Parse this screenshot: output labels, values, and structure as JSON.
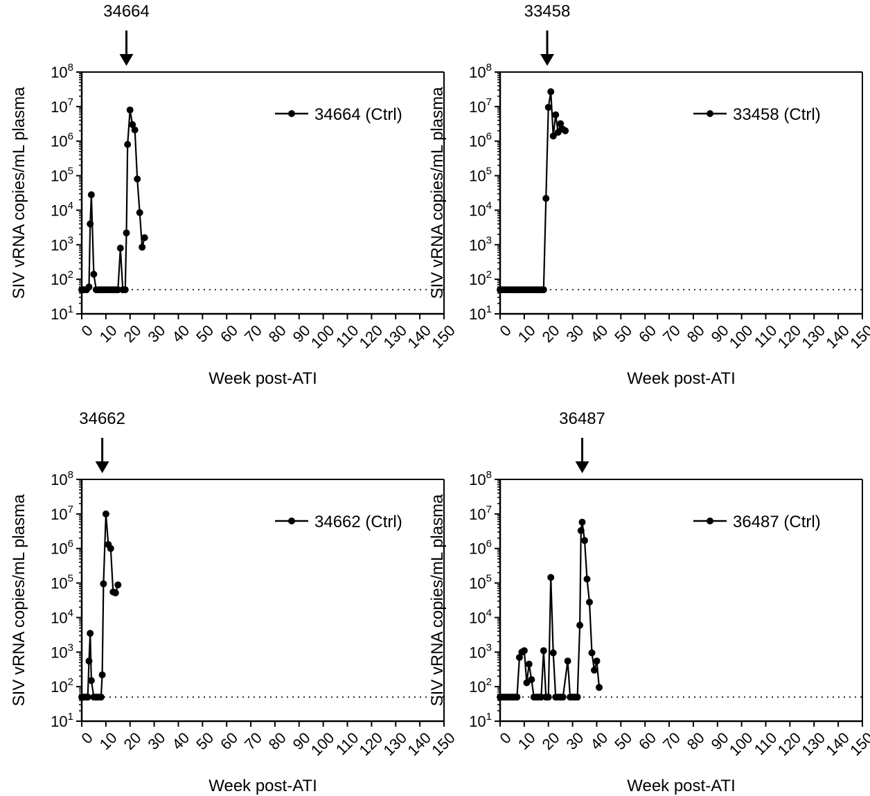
{
  "figure": {
    "ylabel": "SIV vRNA copies/mL plasma",
    "xlabel": "Week post-ATI"
  },
  "chart_data": [
    {
      "type": "line",
      "title": "34664",
      "arrow_week": 18.5,
      "xlabel": "Week post-ATI",
      "ylabel": "SIV vRNA copies/mL plasma",
      "xlim": [
        0,
        150
      ],
      "ylim": [
        10,
        100000000
      ],
      "yscale": "log",
      "xticks": [
        0,
        10,
        20,
        30,
        40,
        50,
        60,
        70,
        80,
        90,
        100,
        110,
        120,
        130,
        140,
        150
      ],
      "yticks": [
        {
          "base": "10",
          "exp": "1"
        },
        {
          "base": "10",
          "exp": "2"
        },
        {
          "base": "10",
          "exp": "3"
        },
        {
          "base": "10",
          "exp": "4"
        },
        {
          "base": "10",
          "exp": "5"
        },
        {
          "base": "10",
          "exp": "6"
        },
        {
          "base": "10",
          "exp": "7"
        },
        {
          "base": "10",
          "exp": "8"
        }
      ],
      "lod": 50,
      "legend_position": "top-right",
      "series": [
        {
          "name": "34664 (Ctrl)",
          "x": [
            0,
            0.5,
            1,
            2,
            3,
            3.5,
            4,
            5,
            6,
            7,
            8,
            9,
            10,
            11,
            12,
            13,
            14,
            15,
            16,
            17,
            18,
            18.5,
            19,
            20,
            21,
            22,
            23,
            24,
            25,
            26
          ],
          "y": [
            50,
            50,
            50,
            50,
            60,
            4000,
            28000,
            140,
            50,
            50,
            50,
            50,
            50,
            50,
            50,
            50,
            50,
            50,
            800,
            50,
            50,
            2200,
            800000,
            8000000,
            3000000,
            2100000,
            80000,
            8500,
            850,
            1600
          ]
        }
      ]
    },
    {
      "type": "line",
      "title": "33458",
      "arrow_week": 19.5,
      "xlabel": "Week post-ATI",
      "ylabel": "SIV vRNA copies/mL plasma",
      "xlim": [
        0,
        150
      ],
      "ylim": [
        10,
        100000000
      ],
      "yscale": "log",
      "xticks": [
        0,
        10,
        20,
        30,
        40,
        50,
        60,
        70,
        80,
        90,
        100,
        110,
        120,
        130,
        140,
        150
      ],
      "yticks": [
        {
          "base": "10",
          "exp": "1"
        },
        {
          "base": "10",
          "exp": "2"
        },
        {
          "base": "10",
          "exp": "3"
        },
        {
          "base": "10",
          "exp": "4"
        },
        {
          "base": "10",
          "exp": "5"
        },
        {
          "base": "10",
          "exp": "6"
        },
        {
          "base": "10",
          "exp": "7"
        },
        {
          "base": "10",
          "exp": "8"
        }
      ],
      "lod": 50,
      "legend_position": "top-right",
      "series": [
        {
          "name": "33458 (Ctrl)",
          "x": [
            0,
            1,
            2,
            3,
            4,
            5,
            6,
            7,
            8,
            9,
            10,
            11,
            12,
            13,
            14,
            15,
            16,
            17,
            18,
            19,
            20,
            21,
            22,
            23,
            24,
            25,
            26,
            27
          ],
          "y": [
            50,
            50,
            50,
            50,
            50,
            50,
            50,
            50,
            50,
            50,
            50,
            50,
            50,
            50,
            50,
            50,
            50,
            50,
            50,
            22000,
            9500000,
            27000000,
            1400000,
            5800000,
            1800000,
            3200000,
            2200000,
            2000000
          ]
        }
      ]
    },
    {
      "type": "line",
      "title": "34662",
      "arrow_week": 8.5,
      "xlabel": "Week post-ATI",
      "ylabel": "SIV vRNA copies/mL plasma",
      "xlim": [
        0,
        150
      ],
      "ylim": [
        10,
        100000000
      ],
      "yscale": "log",
      "xticks": [
        0,
        10,
        20,
        30,
        40,
        50,
        60,
        70,
        80,
        90,
        100,
        110,
        120,
        130,
        140,
        150
      ],
      "yticks": [
        {
          "base": "10",
          "exp": "1"
        },
        {
          "base": "10",
          "exp": "2"
        },
        {
          "base": "10",
          "exp": "3"
        },
        {
          "base": "10",
          "exp": "4"
        },
        {
          "base": "10",
          "exp": "5"
        },
        {
          "base": "10",
          "exp": "6"
        },
        {
          "base": "10",
          "exp": "7"
        },
        {
          "base": "10",
          "exp": "8"
        }
      ],
      "lod": 50,
      "legend_position": "top-right",
      "series": [
        {
          "name": "34662 (Ctrl)",
          "x": [
            0,
            0.5,
            1,
            2,
            2.5,
            3,
            3.5,
            4,
            5,
            6,
            7,
            8,
            8.5,
            9,
            10,
            11,
            12,
            13,
            14,
            15
          ],
          "y": [
            50,
            50,
            50,
            50,
            50,
            550,
            3500,
            150,
            50,
            50,
            50,
            50,
            220,
            95000,
            10000000,
            1300000,
            1000000,
            55000,
            52000,
            88000
          ]
        }
      ]
    },
    {
      "type": "line",
      "title": "36487",
      "arrow_week": 34,
      "xlabel": "Week post-ATI",
      "ylabel": "SIV vRNA copies/mL plasma",
      "xlim": [
        0,
        150
      ],
      "ylim": [
        10,
        100000000
      ],
      "yscale": "log",
      "xticks": [
        0,
        10,
        20,
        30,
        40,
        50,
        60,
        70,
        80,
        90,
        100,
        110,
        120,
        130,
        140,
        150
      ],
      "yticks": [
        {
          "base": "10",
          "exp": "1"
        },
        {
          "base": "10",
          "exp": "2"
        },
        {
          "base": "10",
          "exp": "3"
        },
        {
          "base": "10",
          "exp": "4"
        },
        {
          "base": "10",
          "exp": "5"
        },
        {
          "base": "10",
          "exp": "6"
        },
        {
          "base": "10",
          "exp": "7"
        },
        {
          "base": "10",
          "exp": "8"
        }
      ],
      "lod": 50,
      "legend_position": "top-right",
      "series": [
        {
          "name": "36487 (Ctrl)",
          "x": [
            0,
            1,
            2,
            3,
            4,
            5,
            6,
            7,
            8,
            9,
            10,
            11,
            12,
            13,
            14,
            15,
            16,
            17,
            18,
            19,
            20,
            21,
            22,
            23,
            24,
            25,
            26,
            28,
            29,
            30,
            31,
            32,
            33,
            33.5,
            34,
            35,
            36,
            37,
            38,
            39,
            40,
            41
          ],
          "y": [
            50,
            50,
            50,
            50,
            50,
            50,
            50,
            50,
            700,
            1000,
            1100,
            130,
            450,
            160,
            50,
            50,
            50,
            50,
            1100,
            50,
            50,
            145000,
            950,
            50,
            50,
            50,
            50,
            550,
            50,
            50,
            50,
            50,
            6000,
            3300000,
            5800000,
            1700000,
            130000,
            28000,
            950,
            300,
            550,
            95
          ]
        }
      ]
    }
  ]
}
